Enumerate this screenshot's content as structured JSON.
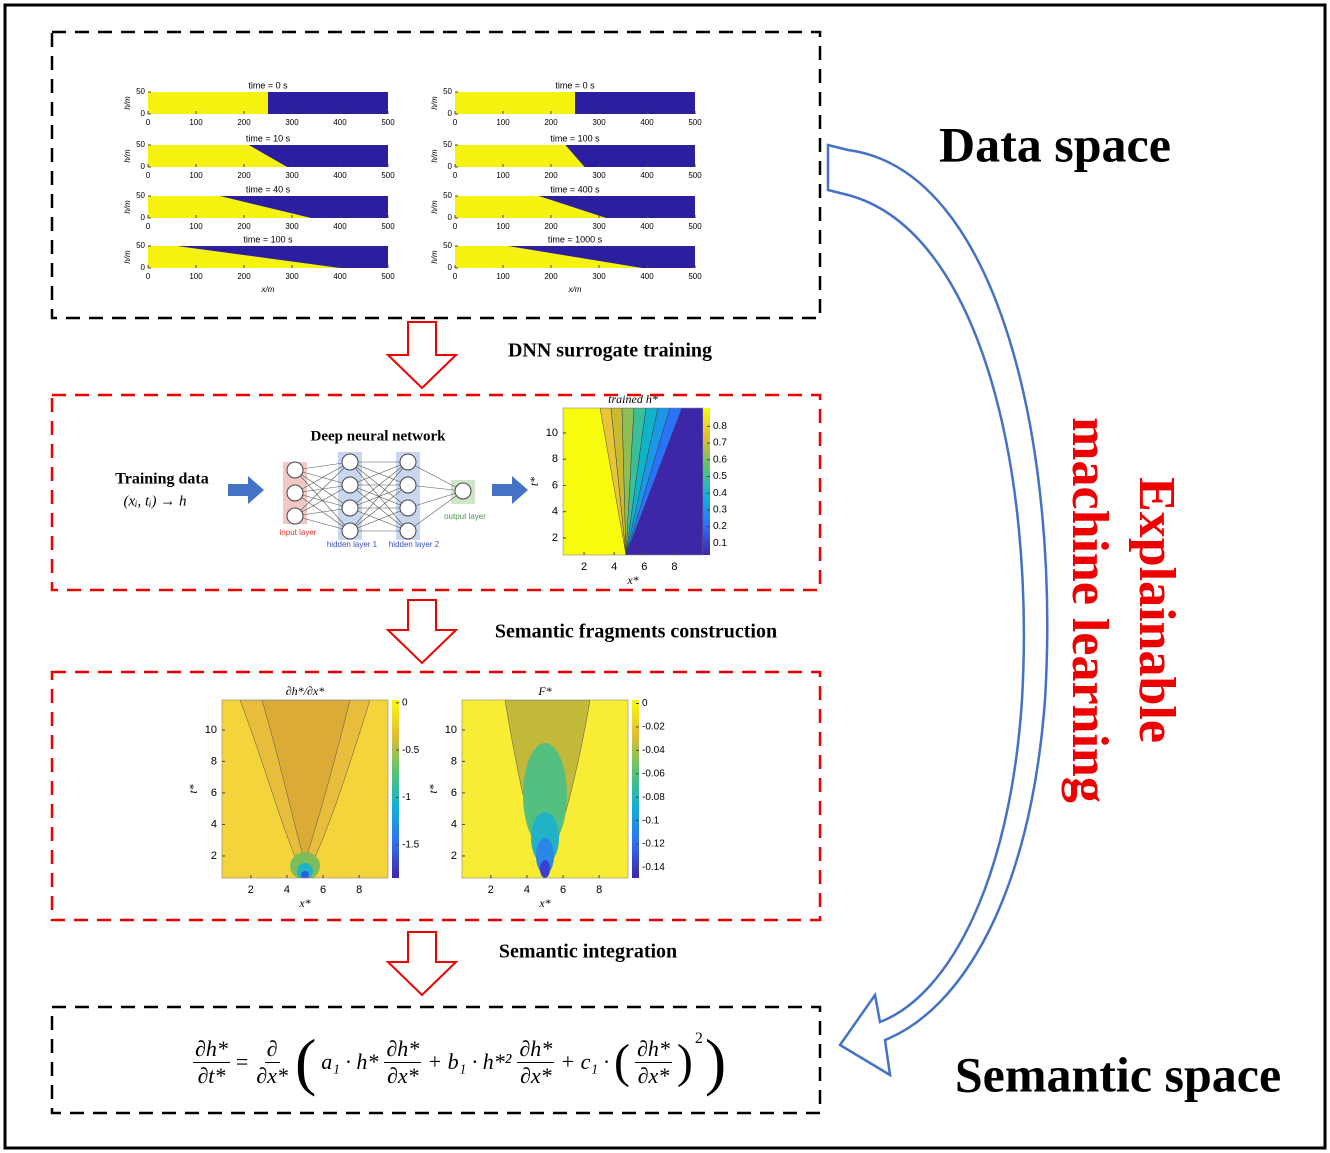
{
  "data_space": "Data space",
  "semantic_space": "Semantic space",
  "side_label": [
    "Explainable",
    "machine learning"
  ],
  "steps": [
    "DNN surrogate training",
    "Semantic fragments construction",
    "Semantic integration"
  ],
  "data_plots": {
    "y_label": "h/m",
    "x_label": "x/m",
    "xlim": [
      0,
      500
    ],
    "ylim": [
      0,
      50
    ],
    "yticks": [
      0,
      50
    ],
    "xticks": [
      0,
      100,
      200,
      300,
      400,
      500
    ],
    "columns": [
      {
        "titles": [
          "time = 0 s",
          "time = 10 s",
          "time = 40 s",
          "time = 100 s"
        ]
      },
      {
        "titles": [
          "time = 0 s",
          "time = 100 s",
          "time = 400 s",
          "time = 1000 s"
        ]
      }
    ]
  },
  "network": {
    "title": "Deep neural network",
    "input": "Training data",
    "input_formula": "(xᵢ, tᵢ) → h",
    "layers": [
      "input layer",
      "hidden layer 1",
      "hidden layer 2",
      "output layer"
    ]
  },
  "trained": {
    "title": "trained h*",
    "x_label": "x*",
    "y_label": "t*",
    "xlim": [
      0.6,
      9.9
    ],
    "ylim": [
      0.7,
      11.9
    ],
    "xticks": [
      2,
      4,
      6,
      8
    ],
    "yticks": [
      2,
      4,
      6,
      8,
      10
    ],
    "clim": [
      0.03,
      0.91
    ],
    "cticks": [
      0.1,
      0.2,
      0.3,
      0.4,
      0.5,
      0.6,
      0.7,
      0.8
    ]
  },
  "fragments": [
    {
      "title": "∂h*/∂x*",
      "x_label": "x*",
      "y_label": "t*",
      "xlim": [
        0.4,
        9.6
      ],
      "ylim": [
        0.6,
        11.9
      ],
      "xticks": [
        2,
        4,
        6,
        8
      ],
      "yticks": [
        2,
        4,
        6,
        8,
        10
      ],
      "clim": [
        -1.85,
        0.03
      ],
      "cticks": [
        0,
        -0.5,
        -1,
        -1.5
      ]
    },
    {
      "title": "F*",
      "x_label": "x*",
      "y_label": "t*",
      "xlim": [
        0.4,
        9.6
      ],
      "ylim": [
        0.6,
        11.9
      ],
      "xticks": [
        2,
        4,
        6,
        8
      ],
      "yticks": [
        2,
        4,
        6,
        8,
        10
      ],
      "clim": [
        -0.149,
        0.003
      ],
      "cticks": [
        0,
        -0.02,
        -0.04,
        -0.06,
        -0.08,
        -0.1,
        -0.12,
        -0.14
      ]
    }
  ],
  "equation": {
    "lhs_num": "∂h*",
    "lhs_den": "∂t*",
    "eq": "=",
    "op_num": "∂",
    "op_den": "∂x*",
    "a": "a₁ · h*",
    "f1_num": "∂h*",
    "f1_den": "∂x*",
    "b": "+ b₁ · h*²",
    "f2_num": "∂h*",
    "f2_den": "∂x*",
    "c": "+ c₁ ·",
    "f3_num": "∂h*",
    "f3_den": "∂x*",
    "power": "2"
  }
}
